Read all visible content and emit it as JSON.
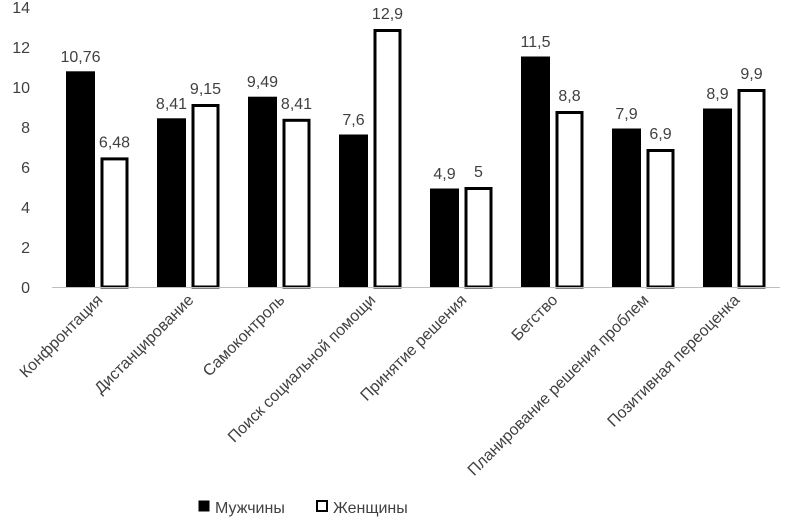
{
  "chart_data": {
    "type": "bar",
    "title": "",
    "xlabel": "",
    "ylabel": "",
    "ylim": [
      0,
      14
    ],
    "yticks": [
      0,
      2,
      4,
      6,
      8,
      10,
      12,
      14
    ],
    "grid": false,
    "legend_position": "bottom",
    "categories": [
      "Конфронтация",
      "Дистанцирование",
      "Самоконтроль",
      "Поиск социальной помощи",
      "Принятие решения",
      "Бегство",
      "Планирование решения проблем",
      "Позитивная переоценка"
    ],
    "series": [
      {
        "name": "Мужчины",
        "fill": "#000000",
        "values": [
          10.76,
          8.41,
          9.49,
          7.6,
          4.9,
          11.5,
          7.9,
          8.9
        ],
        "labels": [
          "10,76",
          "8,41",
          "9,49",
          "7,6",
          "4,9",
          "11,5",
          "7,9",
          "8,9"
        ]
      },
      {
        "name": "Женщины",
        "fill": "#ffffff",
        "values": [
          6.48,
          9.15,
          8.41,
          12.9,
          5,
          8.8,
          6.9,
          9.9
        ],
        "labels": [
          "6,48",
          "9,15",
          "8,41",
          "12,9",
          "5",
          "8,8",
          "6,9",
          "9,9"
        ]
      }
    ]
  }
}
